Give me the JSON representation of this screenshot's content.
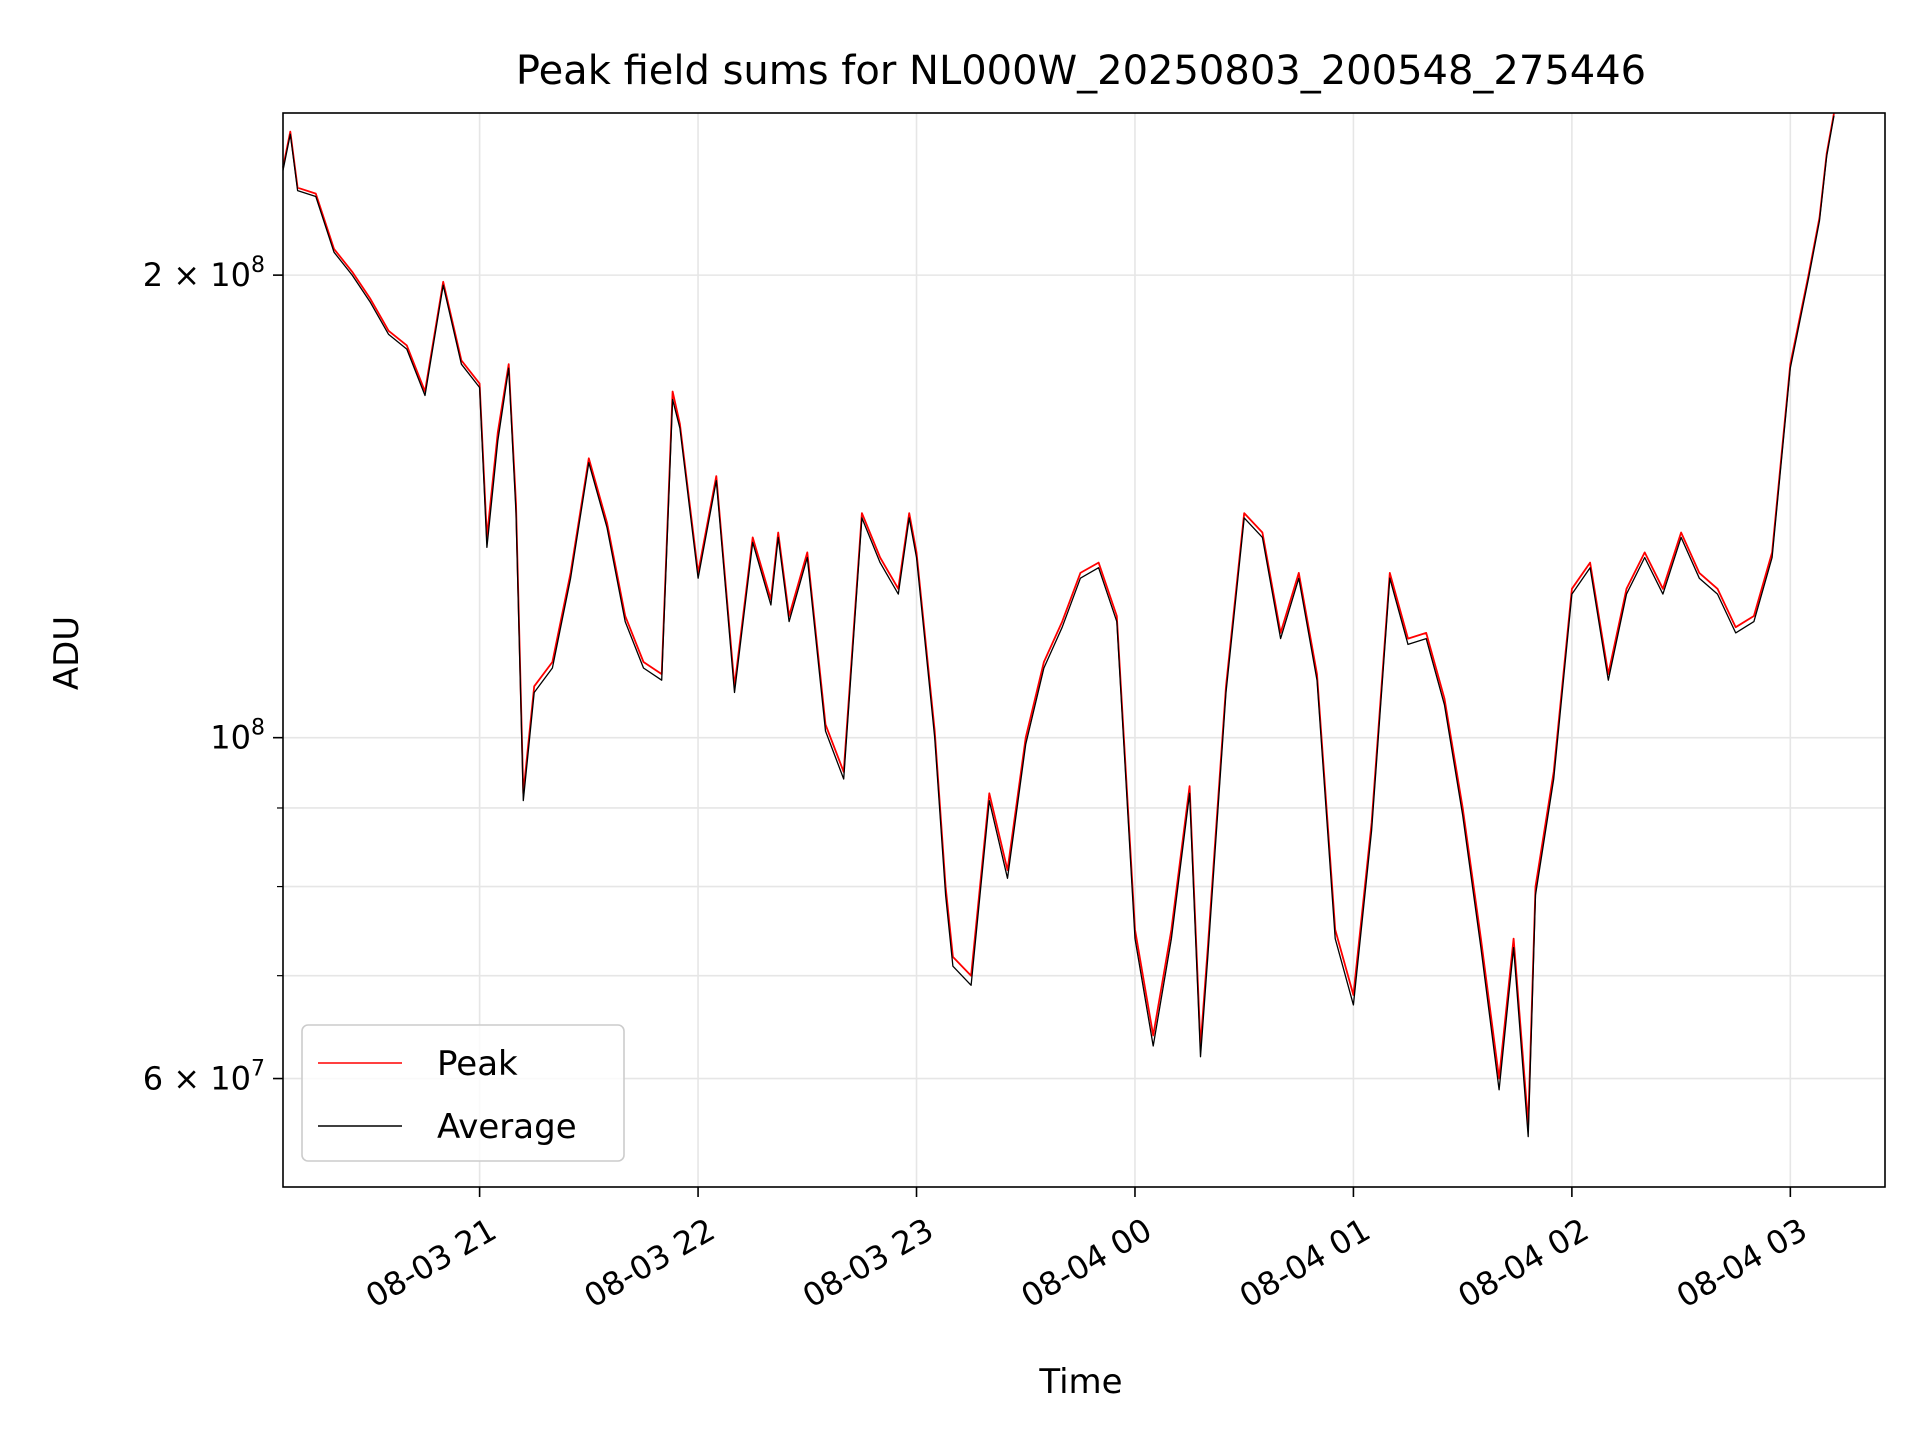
{
  "chart_data": {
    "type": "line",
    "title": "Peak field sums for NL000W_20250803_200548_275446",
    "xlabel": "Time",
    "ylabel": "ADU",
    "yscale": "log",
    "grid": true,
    "legend_placement": "lower-left",
    "xlim": [
      "2025-08-03 20:06",
      "2025-08-04 03:26"
    ],
    "ylim": [
      51000000,
      255000000
    ],
    "x_ticks": [
      {
        "value": "2025-08-03 21:00",
        "label": "08-03 21"
      },
      {
        "value": "2025-08-03 22:00",
        "label": "08-03 22"
      },
      {
        "value": "2025-08-03 23:00",
        "label": "08-03 23"
      },
      {
        "value": "2025-08-04 00:00",
        "label": "08-04 00"
      },
      {
        "value": "2025-08-04 01:00",
        "label": "08-04 01"
      },
      {
        "value": "2025-08-04 02:00",
        "label": "08-04 02"
      },
      {
        "value": "2025-08-04 03:00",
        "label": "08-04 03"
      }
    ],
    "y_ticks_major": [
      {
        "value": 100000000,
        "base": "10",
        "exp": "8"
      },
      {
        "value": 200000000,
        "base": "2 × 10",
        "exp": "8"
      },
      {
        "value": 60000000,
        "base": "6 × 10",
        "exp": "7"
      }
    ],
    "y_ticks_minor": [
      70000000,
      80000000,
      90000000
    ],
    "series": [
      {
        "name": "Peak",
        "color": "#ff0000",
        "x": [
          "2025-08-03 20:06",
          "2025-08-03 20:08",
          "2025-08-03 20:10",
          "2025-08-03 20:15",
          "2025-08-03 20:20",
          "2025-08-03 20:25",
          "2025-08-03 20:30",
          "2025-08-03 20:35",
          "2025-08-03 20:40",
          "2025-08-03 20:45",
          "2025-08-03 20:50",
          "2025-08-03 20:55",
          "2025-08-03 21:00",
          "2025-08-03 21:02",
          "2025-08-03 21:05",
          "2025-08-03 21:08",
          "2025-08-03 21:10",
          "2025-08-03 21:12",
          "2025-08-03 21:15",
          "2025-08-03 21:20",
          "2025-08-03 21:25",
          "2025-08-03 21:30",
          "2025-08-03 21:35",
          "2025-08-03 21:40",
          "2025-08-03 21:45",
          "2025-08-03 21:50",
          "2025-08-03 21:53",
          "2025-08-03 21:55",
          "2025-08-03 22:00",
          "2025-08-03 22:05",
          "2025-08-03 22:10",
          "2025-08-03 22:15",
          "2025-08-03 22:20",
          "2025-08-03 22:22",
          "2025-08-03 22:25",
          "2025-08-03 22:30",
          "2025-08-03 22:35",
          "2025-08-03 22:40",
          "2025-08-03 22:45",
          "2025-08-03 22:50",
          "2025-08-03 22:55",
          "2025-08-03 22:58",
          "2025-08-03 23:00",
          "2025-08-03 23:05",
          "2025-08-03 23:08",
          "2025-08-03 23:10",
          "2025-08-03 23:15",
          "2025-08-03 23:20",
          "2025-08-03 23:25",
          "2025-08-03 23:30",
          "2025-08-03 23:35",
          "2025-08-03 23:40",
          "2025-08-03 23:45",
          "2025-08-03 23:50",
          "2025-08-03 23:55",
          "2025-08-04 00:00",
          "2025-08-04 00:05",
          "2025-08-04 00:10",
          "2025-08-04 00:15",
          "2025-08-04 00:18",
          "2025-08-04 00:20",
          "2025-08-04 00:25",
          "2025-08-04 00:30",
          "2025-08-04 00:35",
          "2025-08-04 00:40",
          "2025-08-04 00:45",
          "2025-08-04 00:50",
          "2025-08-04 00:55",
          "2025-08-04 01:00",
          "2025-08-04 01:05",
          "2025-08-04 01:10",
          "2025-08-04 01:15",
          "2025-08-04 01:20",
          "2025-08-04 01:25",
          "2025-08-04 01:30",
          "2025-08-04 01:35",
          "2025-08-04 01:40",
          "2025-08-04 01:44",
          "2025-08-04 01:48",
          "2025-08-04 01:50",
          "2025-08-04 01:55",
          "2025-08-04 02:00",
          "2025-08-04 02:05",
          "2025-08-04 02:10",
          "2025-08-04 02:15",
          "2025-08-04 02:20",
          "2025-08-04 02:25",
          "2025-08-04 02:30",
          "2025-08-04 02:35",
          "2025-08-04 02:40",
          "2025-08-04 02:45",
          "2025-08-04 02:50",
          "2025-08-04 02:55",
          "2025-08-04 03:00",
          "2025-08-04 03:05",
          "2025-08-04 03:08",
          "2025-08-04 03:10",
          "2025-08-04 03:12"
        ],
        "y": [
          235000000,
          248000000,
          228000000,
          226000000,
          208000000,
          201000000,
          193000000,
          184000000,
          180000000,
          168000000,
          198000000,
          176000000,
          170000000,
          135000000,
          158000000,
          175000000,
          142000000,
          92000000,
          108000000,
          112000000,
          128000000,
          152000000,
          138000000,
          120000000,
          112000000,
          110000000,
          168000000,
          160000000,
          128000000,
          148000000,
          108000000,
          135000000,
          123000000,
          136000000,
          120000000,
          132000000,
          102000000,
          95000000,
          140000000,
          131000000,
          125000000,
          140000000,
          132000000,
          101000000,
          80000000,
          72000000,
          70000000,
          92000000,
          82000000,
          100000000,
          112000000,
          119000000,
          128000000,
          130000000,
          120000000,
          75000000,
          64000000,
          75000000,
          93000000,
          63000000,
          73000000,
          108000000,
          140000000,
          136000000,
          117000000,
          128000000,
          110000000,
          75000000,
          68000000,
          88000000,
          128000000,
          116000000,
          117000000,
          106000000,
          90000000,
          74000000,
          60000000,
          74000000,
          56000000,
          80000000,
          95000000,
          125000000,
          130000000,
          110000000,
          125000000,
          132000000,
          125000000,
          136000000,
          128000000,
          125000000,
          118000000,
          120000000,
          132000000,
          175000000,
          200000000,
          218000000,
          240000000,
          255000000
        ]
      },
      {
        "name": "Average",
        "color": "#000000",
        "x": [
          "2025-08-03 20:06",
          "2025-08-03 20:08",
          "2025-08-03 20:10",
          "2025-08-03 20:15",
          "2025-08-03 20:20",
          "2025-08-03 20:25",
          "2025-08-03 20:30",
          "2025-08-03 20:35",
          "2025-08-03 20:40",
          "2025-08-03 20:45",
          "2025-08-03 20:50",
          "2025-08-03 20:55",
          "2025-08-03 21:00",
          "2025-08-03 21:02",
          "2025-08-03 21:05",
          "2025-08-03 21:08",
          "2025-08-03 21:10",
          "2025-08-03 21:12",
          "2025-08-03 21:15",
          "2025-08-03 21:20",
          "2025-08-03 21:25",
          "2025-08-03 21:30",
          "2025-08-03 21:35",
          "2025-08-03 21:40",
          "2025-08-03 21:45",
          "2025-08-03 21:50",
          "2025-08-03 21:53",
          "2025-08-03 21:55",
          "2025-08-03 22:00",
          "2025-08-03 22:05",
          "2025-08-03 22:10",
          "2025-08-03 22:15",
          "2025-08-03 22:20",
          "2025-08-03 22:22",
          "2025-08-03 22:25",
          "2025-08-03 22:30",
          "2025-08-03 22:35",
          "2025-08-03 22:40",
          "2025-08-03 22:45",
          "2025-08-03 22:50",
          "2025-08-03 22:55",
          "2025-08-03 22:58",
          "2025-08-03 23:00",
          "2025-08-03 23:05",
          "2025-08-03 23:08",
          "2025-08-03 23:10",
          "2025-08-03 23:15",
          "2025-08-03 23:20",
          "2025-08-03 23:25",
          "2025-08-03 23:30",
          "2025-08-03 23:35",
          "2025-08-03 23:40",
          "2025-08-03 23:45",
          "2025-08-03 23:50",
          "2025-08-03 23:55",
          "2025-08-04 00:00",
          "2025-08-04 00:05",
          "2025-08-04 00:10",
          "2025-08-04 00:15",
          "2025-08-04 00:18",
          "2025-08-04 00:20",
          "2025-08-04 00:25",
          "2025-08-04 00:30",
          "2025-08-04 00:35",
          "2025-08-04 00:40",
          "2025-08-04 00:45",
          "2025-08-04 00:50",
          "2025-08-04 00:55",
          "2025-08-04 01:00",
          "2025-08-04 01:05",
          "2025-08-04 01:10",
          "2025-08-04 01:15",
          "2025-08-04 01:20",
          "2025-08-04 01:25",
          "2025-08-04 01:30",
          "2025-08-04 01:35",
          "2025-08-04 01:40",
          "2025-08-04 01:44",
          "2025-08-04 01:48",
          "2025-08-04 01:50",
          "2025-08-04 01:55",
          "2025-08-04 02:00",
          "2025-08-04 02:05",
          "2025-08-04 02:10",
          "2025-08-04 02:15",
          "2025-08-04 02:20",
          "2025-08-04 02:25",
          "2025-08-04 02:30",
          "2025-08-04 02:35",
          "2025-08-04 02:40",
          "2025-08-04 02:45",
          "2025-08-04 02:50",
          "2025-08-04 02:55",
          "2025-08-04 03:00",
          "2025-08-04 03:05",
          "2025-08-04 03:08",
          "2025-08-04 03:10",
          "2025-08-04 03:12"
        ],
        "y": [
          234000000,
          247000000,
          227000000,
          225000000,
          207000000,
          200000000,
          192000000,
          183000000,
          179000000,
          167000000,
          197000000,
          175000000,
          169000000,
          133000000,
          156000000,
          174000000,
          140000000,
          91000000,
          107000000,
          111000000,
          127000000,
          151000000,
          137000000,
          119000000,
          111000000,
          109000000,
          166000000,
          159000000,
          127000000,
          147000000,
          107000000,
          134000000,
          122000000,
          135000000,
          119000000,
          131000000,
          101000000,
          94000000,
          139000000,
          130000000,
          124000000,
          139000000,
          131000000,
          100000000,
          79000000,
          71000000,
          69000000,
          91000000,
          81000000,
          99000000,
          111000000,
          118000000,
          127000000,
          129000000,
          119000000,
          74000000,
          63000000,
          74000000,
          92000000,
          62000000,
          72000000,
          107000000,
          139000000,
          135000000,
          116000000,
          127000000,
          109000000,
          74000000,
          67000000,
          87000000,
          127000000,
          115000000,
          116000000,
          105000000,
          89000000,
          73000000,
          59000000,
          73000000,
          55000000,
          79000000,
          94000000,
          124000000,
          129000000,
          109000000,
          124000000,
          131000000,
          124000000,
          135000000,
          127000000,
          124000000,
          117000000,
          119000000,
          131000000,
          174000000,
          199000000,
          217000000,
          239000000,
          254000000
        ]
      }
    ]
  }
}
